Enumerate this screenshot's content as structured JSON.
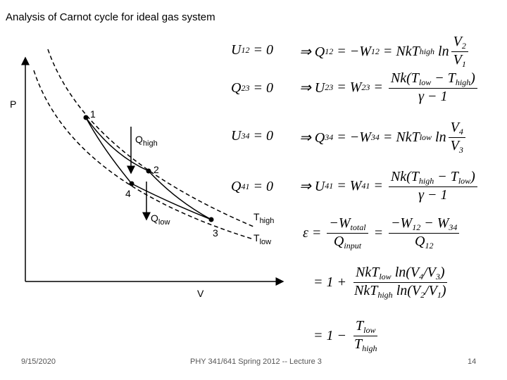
{
  "title": "Analysis of Carnot cycle for ideal gas system",
  "diagram": {
    "y_axis": "P",
    "x_axis": "V",
    "points": [
      "1",
      "2",
      "3",
      "4"
    ],
    "q_high": [
      "Q",
      {
        "sub": "high"
      }
    ],
    "q_low": [
      "Q",
      {
        "sub": "low"
      }
    ],
    "t_high": [
      "T",
      {
        "sub": "high"
      }
    ],
    "t_low": [
      "T",
      {
        "sub": "low"
      }
    ]
  },
  "equations": [
    {
      "lhs": [
        "U",
        {
          "sub": "12"
        },
        " = 0"
      ],
      "rhs": [
        "⇒ Q",
        {
          "sub": "12"
        },
        " = −W",
        {
          "sub": "12"
        },
        " = NkT",
        {
          "sub": "high"
        },
        " ln",
        {
          "frac": {
            "num": [
              "V",
              {
                "sub": "2"
              }
            ],
            "den": [
              "V",
              {
                "sub": "1"
              }
            ]
          }
        }
      ]
    },
    {
      "lhs": [
        "Q",
        {
          "sub": "23"
        },
        " = 0"
      ],
      "rhs": [
        "⇒ U",
        {
          "sub": "23"
        },
        " = W",
        {
          "sub": "23"
        },
        " = ",
        {
          "frac": {
            "num": [
              "Nk(T",
              {
                "sub": "low"
              },
              " − T",
              {
                "sub": "high"
              },
              ")"
            ],
            "den": [
              "γ − 1"
            ]
          }
        }
      ]
    },
    {
      "lhs": [
        "U",
        {
          "sub": "34"
        },
        " = 0"
      ],
      "rhs": [
        "⇒ Q",
        {
          "sub": "34"
        },
        " = −W",
        {
          "sub": "34"
        },
        " = NkT",
        {
          "sub": "low"
        },
        " ln",
        {
          "frac": {
            "num": [
              "V",
              {
                "sub": "4"
              }
            ],
            "den": [
              "V",
              {
                "sub": "3"
              }
            ]
          }
        }
      ]
    },
    {
      "lhs": [
        "Q",
        {
          "sub": "41"
        },
        " = 0"
      ],
      "rhs": [
        "⇒ U",
        {
          "sub": "41"
        },
        " = W",
        {
          "sub": "41"
        },
        " = ",
        {
          "frac": {
            "num": [
              "Nk(T",
              {
                "sub": "high"
              },
              " − T",
              {
                "sub": "low"
              },
              ")"
            ],
            "den": [
              "γ − 1"
            ]
          }
        }
      ]
    }
  ],
  "efficiency": [
    [
      "ε = ",
      {
        "frac": {
          "num": [
            "−W",
            {
              "sub": "total"
            }
          ],
          "den": [
            "Q",
            {
              "sub": "input"
            }
          ]
        }
      },
      " = ",
      {
        "frac": {
          "num": [
            "−W",
            {
              "sub": "12"
            },
            " − W",
            {
              "sub": "34"
            }
          ],
          "den": [
            "Q",
            {
              "sub": "12"
            }
          ]
        }
      }
    ],
    [
      " = 1 + ",
      {
        "frac": {
          "num": [
            "NkT",
            {
              "sub": "low"
            },
            " ln(V",
            {
              "sub": "4"
            },
            "/V",
            {
              "sub": "3"
            },
            ")"
          ],
          "den": [
            "NkT",
            {
              "sub": "high"
            },
            " ln(V",
            {
              "sub": "2"
            },
            "/V",
            {
              "sub": "1"
            },
            ")"
          ]
        }
      }
    ],
    [
      " = 1 − ",
      {
        "frac": {
          "num": [
            "T",
            {
              "sub": "low"
            }
          ],
          "den": [
            "T",
            {
              "sub": "high"
            }
          ]
        }
      }
    ]
  ],
  "footer": {
    "date": "9/15/2020",
    "course": "PHY 341/641 Spring 2012 -- Lecture 3",
    "page": "14"
  }
}
